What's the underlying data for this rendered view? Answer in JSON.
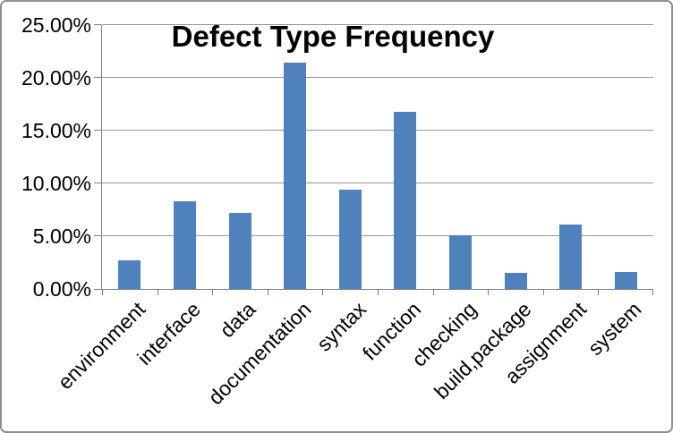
{
  "chart_data": {
    "type": "bar",
    "title": "Defect Type Frequency",
    "categories": [
      "environment",
      "interface",
      "data",
      "documentation",
      "syntax",
      "function",
      "checking",
      "build,package",
      "assignment",
      "system"
    ],
    "values": [
      2.7,
      8.3,
      7.2,
      21.4,
      9.4,
      16.8,
      5.1,
      1.5,
      6.1,
      1.6
    ],
    "xlabel": "",
    "ylabel": "",
    "ylim": [
      0,
      25
    ],
    "ytick_step": 5,
    "ytick_labels": [
      "0.00%",
      "5.00%",
      "10.00%",
      "15.00%",
      "20.00%",
      "25.00%"
    ],
    "grid": true,
    "legend_position": "none",
    "bar_color": "#4F81BD",
    "gridline_color": "#969696",
    "axis_color": "#808080",
    "frame_border_color": "#909090",
    "background_color": "#FFFFFF"
  }
}
